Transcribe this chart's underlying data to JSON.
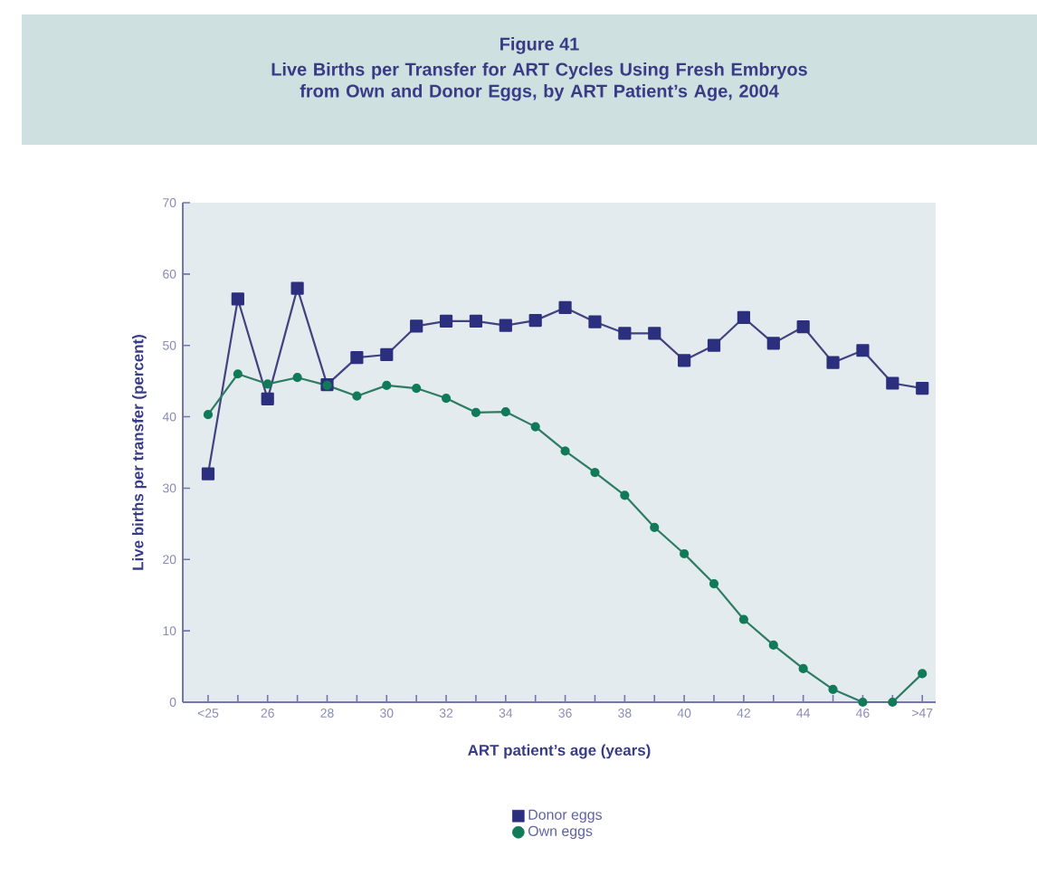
{
  "chart_data": {
    "type": "line",
    "title": "Figure 41",
    "subtitle": "Live Births per Transfer for ART Cycles Using Fresh Embryos from Own and Donor Eggs, by ART Patient’s Age, 2004",
    "xlabel": "ART patient’s age (years)",
    "ylabel": "Live births per transfer (percent)",
    "categories": [
      "<25",
      null,
      "26",
      null,
      "28",
      null,
      "30",
      null,
      "32",
      null,
      "34",
      null,
      "36",
      null,
      "38",
      null,
      "40",
      null,
      "42",
      null,
      "44",
      null,
      "46",
      null,
      ">47"
    ],
    "ylim": [
      0,
      70
    ],
    "yticks": [
      0,
      10,
      20,
      30,
      40,
      50,
      60,
      70
    ],
    "legend": "bottom",
    "series": [
      {
        "name": "Donor eggs",
        "color": "#2b2f7e",
        "marker": "square",
        "values": [
          32,
          56.5,
          42.5,
          58,
          44.5,
          48.3,
          48.7,
          52.7,
          53.4,
          53.4,
          52.8,
          53.5,
          55.3,
          53.3,
          51.7,
          51.7,
          47.9,
          50,
          53.9,
          50.3,
          52.6,
          47.6,
          49.3,
          44.7,
          44
        ]
      },
      {
        "name": "Own eggs",
        "color": "#117a58",
        "marker": "circle",
        "values": [
          40.3,
          46,
          44.6,
          45.5,
          44.4,
          42.9,
          44.4,
          44,
          42.6,
          40.6,
          40.7,
          38.6,
          35.2,
          32.2,
          29,
          24.5,
          20.8,
          16.6,
          11.6,
          8,
          4.7,
          1.8,
          0,
          0,
          4
        ]
      }
    ]
  }
}
